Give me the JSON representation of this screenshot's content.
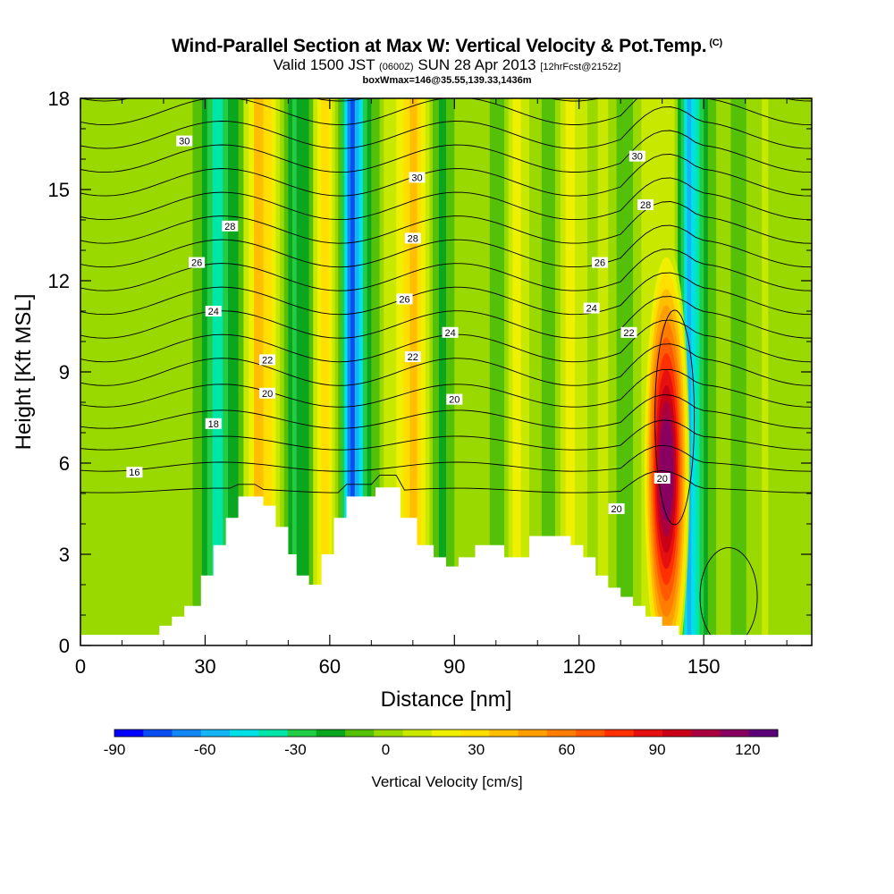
{
  "header": {
    "title": "Wind-Parallel Section at Max W: Vertical Velocity & Pot.Temp.",
    "title_mark": "(C)",
    "subtitle_a": "Valid 1500 JST",
    "subtitle_b": "(0600Z)",
    "subtitle_c": "SUN 28 Apr 2013",
    "subtitle_d": "[12hrFcst@2152z]",
    "box_line": "boxWmax=146@35.55,139.33,1436m"
  },
  "chart_data": {
    "type": "heatmap",
    "xlabel": "Distance [nm]",
    "ylabel": "Height [Kft MSL]",
    "xlim": [
      0,
      176
    ],
    "ylim": [
      0,
      18
    ],
    "x_ticks": [
      0,
      30,
      60,
      90,
      120,
      150
    ],
    "y_ticks": [
      0,
      3,
      6,
      9,
      12,
      15,
      18
    ],
    "colorbar": {
      "title": "Vertical Velocity [cm/s]",
      "levels": [
        -90,
        -80,
        -70,
        -60,
        -50,
        -40,
        -30,
        -20,
        -10,
        0,
        10,
        20,
        30,
        40,
        50,
        60,
        70,
        80,
        90,
        100,
        110,
        120,
        130
      ],
      "tick_labels": [
        "-90",
        "-60",
        "-30",
        "0",
        "30",
        "60",
        "90",
        "120"
      ],
      "tick_values": [
        -90,
        -60,
        -30,
        0,
        30,
        60,
        90,
        120
      ],
      "colors": [
        "#0000ff",
        "#0a4ef2",
        "#1286f4",
        "#14b4f5",
        "#00e0e6",
        "#00e6a8",
        "#22cc44",
        "#0aa620",
        "#55c008",
        "#99d900",
        "#c8e800",
        "#eef000",
        "#ffde00",
        "#ffbe00",
        "#ff9e00",
        "#ff7e00",
        "#ff5a00",
        "#ff3000",
        "#e61010",
        "#c80018",
        "#aa0040",
        "#880060",
        "#5a0078"
      ]
    },
    "velocity_columns": [
      {
        "x": 0,
        "w": 5
      },
      {
        "x": 8,
        "w": 4
      },
      {
        "x": 16,
        "w": 7
      },
      {
        "x": 24,
        "w": 8
      },
      {
        "x": 28,
        "w": -3
      },
      {
        "x": 33,
        "w": -35
      },
      {
        "x": 38,
        "w": -10
      },
      {
        "x": 43,
        "w": 48
      },
      {
        "x": 47,
        "w": 25
      },
      {
        "x": 51,
        "w": -25
      },
      {
        "x": 55,
        "w": -8
      },
      {
        "x": 59,
        "w": 42
      },
      {
        "x": 62,
        "w": 5
      },
      {
        "x": 65,
        "w": -78
      },
      {
        "x": 69,
        "w": -20
      },
      {
        "x": 73,
        "w": 10
      },
      {
        "x": 77,
        "w": 22
      },
      {
        "x": 80,
        "w": 48
      },
      {
        "x": 84,
        "w": 10
      },
      {
        "x": 87,
        "w": -18
      },
      {
        "x": 91,
        "w": 5
      },
      {
        "x": 96,
        "w": 8
      },
      {
        "x": 101,
        "w": -10
      },
      {
        "x": 105,
        "w": 28
      },
      {
        "x": 109,
        "w": 3
      },
      {
        "x": 113,
        "w": -5
      },
      {
        "x": 118,
        "w": 25
      },
      {
        "x": 122,
        "w": 8
      },
      {
        "x": 127,
        "w": 12
      },
      {
        "x": 131,
        "w": -12
      },
      {
        "x": 135,
        "w": 10
      },
      {
        "x": 139,
        "w": 18
      },
      {
        "x": 143,
        "w": 12
      },
      {
        "x": 146,
        "w": -55
      },
      {
        "x": 150,
        "w": -20
      },
      {
        "x": 154,
        "w": 8
      },
      {
        "x": 159,
        "w": -5
      },
      {
        "x": 164,
        "w": 12
      },
      {
        "x": 170,
        "w": 3
      },
      {
        "x": 176,
        "w": 5
      }
    ],
    "updraft_core": {
      "x": 141,
      "height": 5.8,
      "peak_w": 130
    },
    "terrain": [
      [
        0,
        0.35
      ],
      [
        19,
        0.35
      ],
      [
        19,
        0.65
      ],
      [
        22,
        0.65
      ],
      [
        22,
        0.95
      ],
      [
        25,
        0.95
      ],
      [
        25,
        1.3
      ],
      [
        29,
        1.3
      ],
      [
        29,
        2.3
      ],
      [
        32,
        2.3
      ],
      [
        32,
        3.3
      ],
      [
        35,
        3.3
      ],
      [
        35,
        4.2
      ],
      [
        38,
        4.2
      ],
      [
        38,
        4.9
      ],
      [
        44,
        4.9
      ],
      [
        44,
        4.6
      ],
      [
        47,
        4.6
      ],
      [
        47,
        3.9
      ],
      [
        50,
        3.9
      ],
      [
        50,
        3.0
      ],
      [
        52,
        3.0
      ],
      [
        52,
        2.3
      ],
      [
        55,
        2.3
      ],
      [
        55,
        2.0
      ],
      [
        58,
        2.0
      ],
      [
        58,
        3.0
      ],
      [
        61,
        3.0
      ],
      [
        61,
        4.2
      ],
      [
        64,
        4.2
      ],
      [
        64,
        4.9
      ],
      [
        71,
        4.9
      ],
      [
        71,
        5.2
      ],
      [
        77,
        5.2
      ],
      [
        77,
        4.2
      ],
      [
        81,
        4.2
      ],
      [
        81,
        3.3
      ],
      [
        85,
        3.3
      ],
      [
        85,
        2.9
      ],
      [
        88,
        2.9
      ],
      [
        88,
        2.6
      ],
      [
        91,
        2.6
      ],
      [
        91,
        2.9
      ],
      [
        95,
        2.9
      ],
      [
        95,
        3.3
      ],
      [
        102,
        3.3
      ],
      [
        102,
        2.9
      ],
      [
        108,
        2.9
      ],
      [
        108,
        3.6
      ],
      [
        118,
        3.6
      ],
      [
        118,
        3.3
      ],
      [
        121,
        3.3
      ],
      [
        121,
        2.9
      ],
      [
        124,
        2.9
      ],
      [
        124,
        2.3
      ],
      [
        127,
        2.3
      ],
      [
        127,
        1.9
      ],
      [
        130,
        1.9
      ],
      [
        130,
        1.6
      ],
      [
        133,
        1.6
      ],
      [
        133,
        1.3
      ],
      [
        136,
        1.3
      ],
      [
        136,
        0.95
      ],
      [
        140,
        0.95
      ],
      [
        140,
        0.65
      ],
      [
        144,
        0.65
      ],
      [
        144,
        0.35
      ],
      [
        176,
        0.35
      ]
    ],
    "isentropes_K": [
      14,
      15,
      16,
      17,
      18,
      19,
      20,
      21,
      22,
      23,
      24,
      25,
      26,
      27,
      28,
      29,
      30,
      31,
      32
    ],
    "contour_labels": [
      {
        "text": "30",
        "x": 25,
        "y": 16.6
      },
      {
        "text": "28",
        "x": 36,
        "y": 13.8
      },
      {
        "text": "26",
        "x": 28,
        "y": 12.6
      },
      {
        "text": "24",
        "x": 32,
        "y": 11.0
      },
      {
        "text": "22",
        "x": 45,
        "y": 9.4
      },
      {
        "text": "20",
        "x": 45,
        "y": 8.3
      },
      {
        "text": "18",
        "x": 32,
        "y": 7.3
      },
      {
        "text": "16",
        "x": 13,
        "y": 5.7
      },
      {
        "text": "30",
        "x": 81,
        "y": 15.4
      },
      {
        "text": "28",
        "x": 80,
        "y": 13.4
      },
      {
        "text": "26",
        "x": 78,
        "y": 11.4
      },
      {
        "text": "24",
        "x": 89,
        "y": 10.3
      },
      {
        "text": "22",
        "x": 80,
        "y": 9.5
      },
      {
        "text": "20",
        "x": 90,
        "y": 8.1
      },
      {
        "text": "30",
        "x": 134,
        "y": 16.1
      },
      {
        "text": "28",
        "x": 136,
        "y": 14.5
      },
      {
        "text": "26",
        "x": 125,
        "y": 12.6
      },
      {
        "text": "24",
        "x": 123,
        "y": 11.1
      },
      {
        "text": "22",
        "x": 132,
        "y": 10.3
      },
      {
        "text": "20",
        "x": 129,
        "y": 4.5
      },
      {
        "text": "20",
        "x": 140,
        "y": 5.5
      }
    ]
  }
}
